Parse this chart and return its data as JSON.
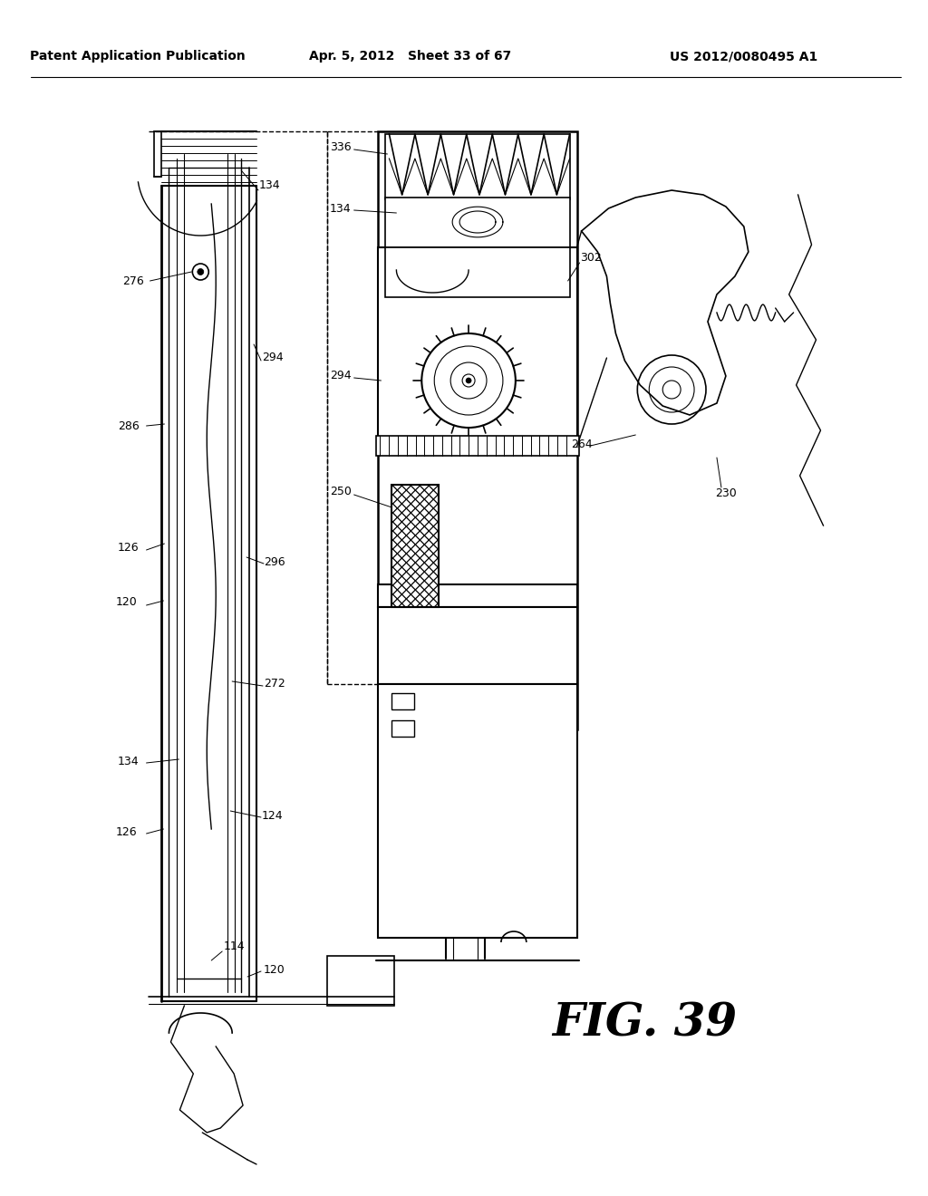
{
  "title_left": "Patent Application Publication",
  "title_center": "Apr. 5, 2012   Sheet 33 of 67",
  "title_right": "US 2012/0080495 A1",
  "fig_label": "FIG. 39",
  "bg_color": "#ffffff",
  "line_color": "#000000",
  "labels": {
    "134_top": "134",
    "276": "276",
    "286": "286",
    "294_left": "294",
    "296": "296",
    "126_top": "126",
    "120_top": "120",
    "272": "272",
    "134_bot": "134",
    "124": "124",
    "126_bot": "126",
    "114": "114",
    "120_bot": "120",
    "336": "336",
    "134_right": "134",
    "302": "302",
    "294_right": "294",
    "250": "250",
    "264": "264",
    "230": "230"
  }
}
